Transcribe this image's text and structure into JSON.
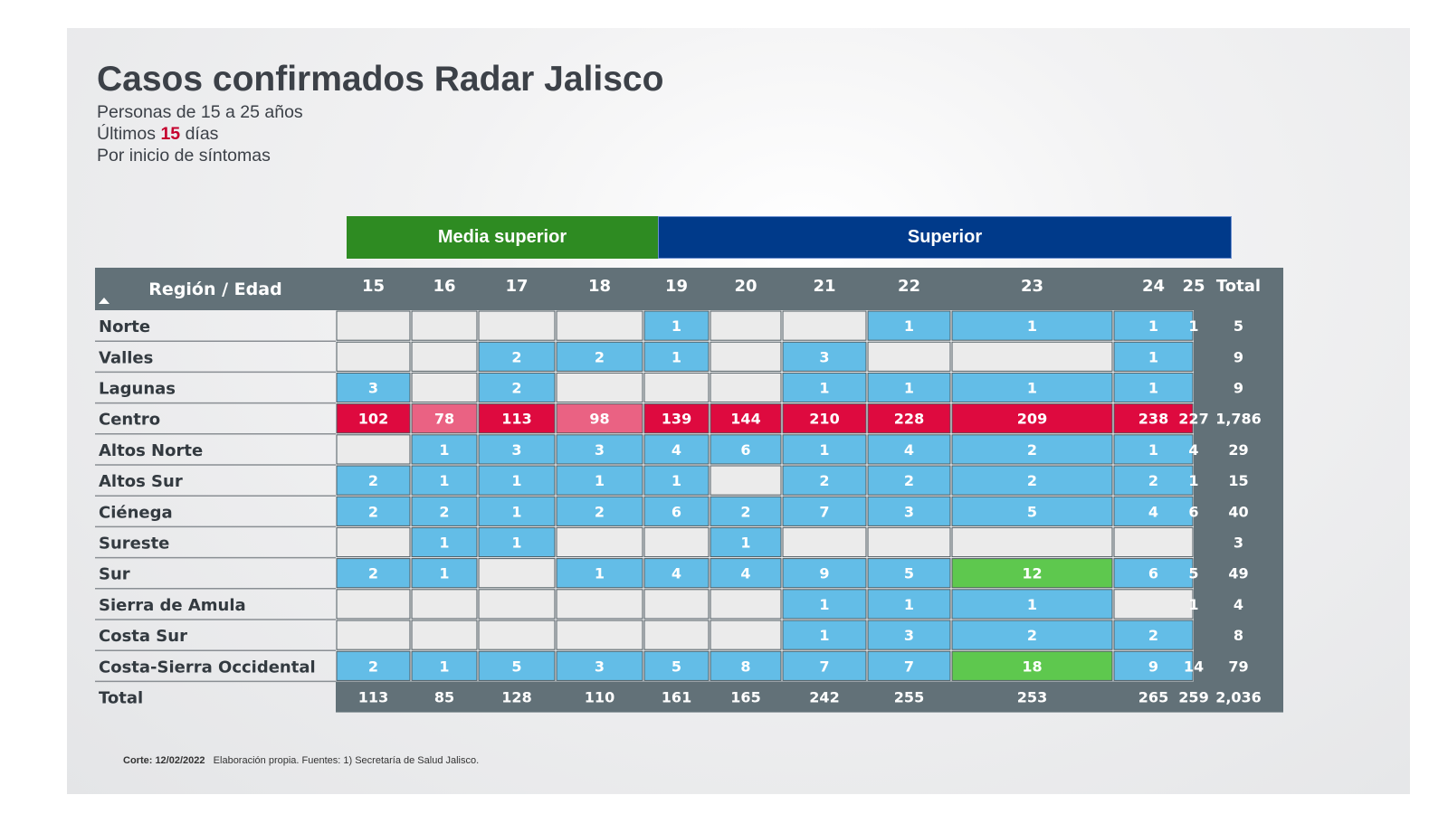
{
  "title": "Casos confirmados Radar Jalisco",
  "subtitle_1": "Personas de 15 a 25 años",
  "subtitle_2_prefix": "Últimos",
  "subtitle_2_num": "15",
  "subtitle_2_suffix": "días",
  "subtitle_3": "Por inicio de síntomas",
  "groups": [
    {
      "label": "Media superior",
      "color": "#2e8b22"
    },
    {
      "label": "Superior",
      "color": "#003a8a"
    }
  ],
  "colors": {
    "header_bg": "#627178",
    "empty": "#ebebeb",
    "low": "#63bde7",
    "medium_high": "#5ec84e",
    "high": "#ea6283",
    "very_high": "#de0a3f"
  },
  "footnote": {
    "corte": "Corte: 12/02/2022",
    "rest": "Elaboración propia.  Fuentes:  1) Secretaría de Salud Jalisco."
  },
  "chart_data": {
    "type": "heatmap",
    "row_header": "Región / Edad",
    "columns": [
      "15",
      "16",
      "17",
      "18",
      "19",
      "20",
      "21",
      "22",
      "23",
      "24",
      "25"
    ],
    "total_label": "Total",
    "rows": [
      {
        "label": "Norte",
        "values": [
          null,
          null,
          null,
          null,
          1,
          null,
          null,
          1,
          1,
          1,
          1
        ],
        "total": "5"
      },
      {
        "label": "Valles",
        "values": [
          null,
          null,
          2,
          2,
          1,
          null,
          3,
          null,
          null,
          1,
          null
        ],
        "total": "9"
      },
      {
        "label": "Lagunas",
        "values": [
          3,
          null,
          2,
          null,
          null,
          null,
          1,
          1,
          1,
          1,
          null
        ],
        "total": "9"
      },
      {
        "label": "Centro",
        "values": [
          102,
          78,
          113,
          98,
          139,
          144,
          210,
          228,
          209,
          238,
          227
        ],
        "total": "1,786"
      },
      {
        "label": "Altos Norte",
        "values": [
          null,
          1,
          3,
          3,
          4,
          6,
          1,
          4,
          2,
          1,
          4
        ],
        "total": "29"
      },
      {
        "label": "Altos Sur",
        "values": [
          2,
          1,
          1,
          1,
          1,
          null,
          2,
          2,
          2,
          2,
          1
        ],
        "total": "15"
      },
      {
        "label": "Ciénega",
        "values": [
          2,
          2,
          1,
          2,
          6,
          2,
          7,
          3,
          5,
          4,
          6
        ],
        "total": "40"
      },
      {
        "label": "Sureste",
        "values": [
          null,
          1,
          1,
          null,
          null,
          1,
          null,
          null,
          null,
          null,
          null
        ],
        "total": "3"
      },
      {
        "label": "Sur",
        "values": [
          2,
          1,
          null,
          1,
          4,
          4,
          9,
          5,
          12,
          6,
          5
        ],
        "total": "49"
      },
      {
        "label": "Sierra de Amula",
        "values": [
          null,
          null,
          null,
          null,
          null,
          null,
          1,
          1,
          1,
          null,
          1
        ],
        "total": "4"
      },
      {
        "label": "Costa Sur",
        "values": [
          null,
          null,
          null,
          null,
          null,
          null,
          1,
          3,
          2,
          2,
          null
        ],
        "total": "8"
      },
      {
        "label": "Costa-Sierra Occidental",
        "values": [
          2,
          1,
          5,
          3,
          5,
          8,
          7,
          7,
          18,
          9,
          14
        ],
        "total": "79"
      }
    ],
    "totals_row": {
      "label": "Total",
      "values": [
        "113",
        "85",
        "128",
        "110",
        "161",
        "165",
        "242",
        "255",
        "253",
        "265",
        "259"
      ],
      "grand_total": "2,036"
    }
  }
}
